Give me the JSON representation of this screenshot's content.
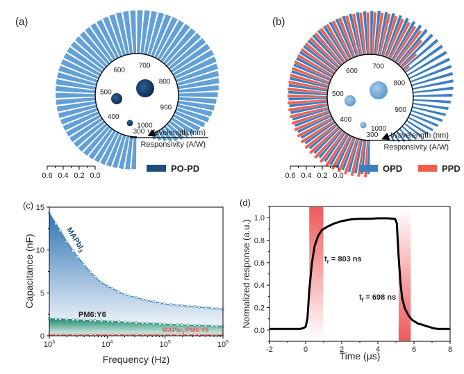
{
  "panels": {
    "a": {
      "label": "(a)"
    },
    "b": {
      "label": "(b)"
    },
    "c": {
      "label": "(c)"
    },
    "d": {
      "label": "(d)"
    }
  },
  "chart_data": [
    {
      "id": "a",
      "type": "radial-bar",
      "title": "",
      "wavelength_label": "Wavelength (nm)",
      "responsivity_label": "Responsivity (A/W)",
      "wavelength_ticks": [
        "300",
        "400",
        "500",
        "600",
        "700",
        "800",
        "900",
        "1000"
      ],
      "scale_ticks": [
        "0.6",
        "0.4",
        "0.2",
        "0.0"
      ],
      "scale_range": [
        0,
        0.6
      ],
      "wavelength_range": [
        300,
        1000
      ],
      "bubbles": [
        {
          "wavelength": 300,
          "size": "small"
        },
        {
          "wavelength": 500,
          "size": "medium"
        },
        {
          "wavelength": 800,
          "size": "large"
        }
      ],
      "legend": [
        {
          "name": "PO-PD",
          "color": "#1f4e79"
        }
      ],
      "series": [
        {
          "name": "PO-PD",
          "color": "#5b9bd5",
          "x": [
            300,
            400,
            500,
            600,
            700,
            800,
            850,
            900,
            950,
            1000
          ],
          "values": [
            0.4,
            0.47,
            0.5,
            0.52,
            0.55,
            0.57,
            0.5,
            0.42,
            0.25,
            0.05
          ]
        }
      ]
    },
    {
      "id": "b",
      "type": "radial-bar",
      "wavelength_label": "Wavelength (nm)",
      "responsivity_label": "Responsivity (A/W)",
      "wavelength_ticks": [
        "300",
        "400",
        "500",
        "600",
        "700",
        "800",
        "900",
        "1000"
      ],
      "scale_ticks": [
        "0.6",
        "0.4",
        "0.2",
        "0.0"
      ],
      "scale_range": [
        0,
        0.6
      ],
      "wavelength_range": [
        300,
        1000
      ],
      "bubbles": [
        {
          "wavelength": 300,
          "size": "small"
        },
        {
          "wavelength": 500,
          "size": "medium"
        },
        {
          "wavelength": 800,
          "size": "large"
        }
      ],
      "legend": [
        {
          "name": "OPD",
          "color": "#3d7fc1"
        },
        {
          "name": "PPD",
          "color": "#ef5f4f"
        }
      ],
      "series": [
        {
          "name": "OPD",
          "color": "#3d7fc1",
          "x": [
            300,
            400,
            500,
            600,
            700,
            800,
            850,
            900,
            950,
            1000
          ],
          "values": [
            0.42,
            0.45,
            0.49,
            0.52,
            0.55,
            0.57,
            0.5,
            0.4,
            0.22,
            0.03
          ]
        },
        {
          "name": "PPD",
          "color": "#ef5f4f",
          "x": [
            300,
            400,
            500,
            600,
            700,
            750,
            780,
            800,
            900,
            1000
          ],
          "values": [
            0.46,
            0.49,
            0.5,
            0.52,
            0.53,
            0.5,
            0.0,
            0.0,
            0.0,
            0.0
          ]
        }
      ]
    },
    {
      "id": "c",
      "type": "area",
      "xlabel": "Frequency (Hz)",
      "ylabel": "Capacitance (nF)",
      "xscale": "log",
      "xlim": [
        1000,
        1000000
      ],
      "ylim": [
        0,
        15
      ],
      "xticks": [
        {
          "base": "10",
          "exp": "3"
        },
        {
          "base": "10",
          "exp": "4"
        },
        {
          "base": "10",
          "exp": "5"
        },
        {
          "base": "10",
          "exp": "6"
        }
      ],
      "yticks": [
        "0",
        "5",
        "10",
        "15"
      ],
      "series": [
        {
          "name": "MAPbI3",
          "label_main": "MAPbI",
          "label_sub": "3",
          "color": "#3d7fc1",
          "x": [
            1000,
            1500,
            2000,
            3000,
            5000,
            7000,
            10000,
            20000,
            50000,
            100000,
            300000,
            1000000
          ],
          "values": [
            14.3,
            12.4,
            11.0,
            9.3,
            7.5,
            6.5,
            5.8,
            4.8,
            4.1,
            3.7,
            3.4,
            3.1
          ]
        },
        {
          "name": "PM6:Y6",
          "color": "#2a8a78",
          "x": [
            1000,
            10000,
            100000,
            1000000
          ],
          "values": [
            2.0,
            1.7,
            1.35,
            1.1
          ]
        },
        {
          "name": "MAPbI3/PM6:Y6",
          "label_main": "MAPbI",
          "label_sub": "3",
          "label_rest": "/PM6:Y6",
          "color": "#e85a55",
          "x": [
            1000,
            1000000
          ],
          "values": [
            0.15,
            0.12
          ]
        }
      ]
    },
    {
      "id": "d",
      "type": "line",
      "xlabel": "Time (μs)",
      "ylabel": "Normalized response (a.u.)",
      "xlim": [
        -2,
        8
      ],
      "ylim": [
        -0.1,
        1.1
      ],
      "xticks": [
        "-2",
        "0",
        "2",
        "4",
        "6",
        "8"
      ],
      "yticks": [
        "0.0",
        "0.2",
        "0.4",
        "0.6",
        "0.8",
        "1.0"
      ],
      "rise_band": [
        0.2,
        0.98
      ],
      "fall_band": [
        5.15,
        5.82
      ],
      "annotations": [
        {
          "main": "t",
          "sub": "r",
          "rest": " = 803 ns"
        },
        {
          "main": "t",
          "sub": "f",
          "rest": " = 698 ns"
        }
      ],
      "series": [
        {
          "name": "response",
          "color": "#000000",
          "x": [
            -2,
            -0.3,
            -0.1,
            0.0,
            0.1,
            0.2,
            0.35,
            0.5,
            0.7,
            0.9,
            1.2,
            1.6,
            2.0,
            2.5,
            3.0,
            3.5,
            4.0,
            4.5,
            4.95,
            5.05,
            5.15,
            5.25,
            5.35,
            5.5,
            5.7,
            5.9,
            6.2,
            6.6,
            7.0,
            7.3,
            8.0
          ],
          "values": [
            0.01,
            0.01,
            0.02,
            0.03,
            0.1,
            0.35,
            0.6,
            0.75,
            0.84,
            0.89,
            0.92,
            0.95,
            0.97,
            0.985,
            0.99,
            0.99,
            0.995,
            0.995,
            0.99,
            0.95,
            0.65,
            0.42,
            0.28,
            0.19,
            0.13,
            0.09,
            0.06,
            0.04,
            0.02,
            0.01,
            0.01
          ]
        }
      ]
    }
  ]
}
